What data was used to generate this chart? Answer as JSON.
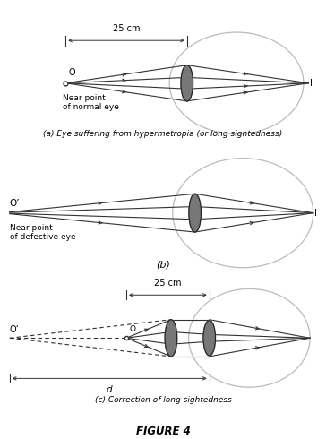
{
  "bg_color": "#ffffff",
  "fig_width": 3.64,
  "fig_height": 4.9,
  "title": "FIGURE 4",
  "panel_a_caption": "(a) Eye suffering from hypermetropia (or long sightedness)",
  "panel_b_caption": "(b)",
  "panel_c_caption": "(c) Correction of long sightedness",
  "label_25cm": "25 cm",
  "label_d": "d",
  "label_O": "O",
  "label_O_prime": "O’",
  "label_I": "I",
  "near_point_normal": "Near point\nof normal eye",
  "near_point_defective": "Near point\nof defective eye",
  "lens_color_dark": "#666666",
  "lens_color_light": "#aaaaaa",
  "eye_circle_color": "#bbbbbb",
  "line_color": "#333333",
  "dashed_color": "#333333",
  "text_color": "#000000"
}
